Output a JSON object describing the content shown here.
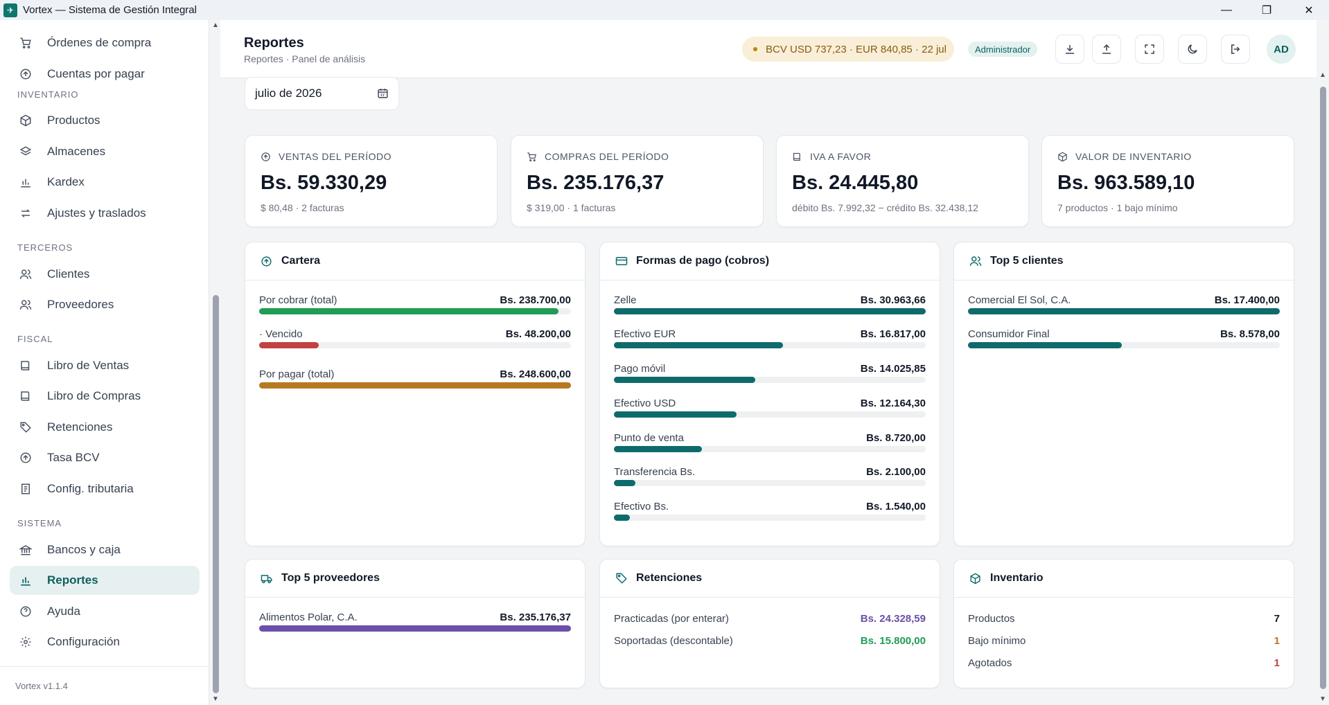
{
  "window": {
    "title": "Vortex — Sistema de Gestión Integral"
  },
  "sidebar": {
    "items_top": [
      {
        "label": "Órdenes de compra",
        "icon": "cart-icon"
      },
      {
        "label": "Cuentas por pagar",
        "icon": "circle-arrow-icon"
      }
    ],
    "sections": [
      {
        "title": "INVENTARIO",
        "items": [
          {
            "label": "Productos",
            "icon": "box-icon"
          },
          {
            "label": "Almacenes",
            "icon": "layers-icon"
          },
          {
            "label": "Kardex",
            "icon": "bar-chart-icon"
          },
          {
            "label": "Ajustes y traslados",
            "icon": "transfer-icon"
          }
        ]
      },
      {
        "title": "TERCEROS",
        "items": [
          {
            "label": "Clientes",
            "icon": "users-icon"
          },
          {
            "label": "Proveedores",
            "icon": "users-icon"
          }
        ]
      },
      {
        "title": "FISCAL",
        "items": [
          {
            "label": "Libro de Ventas",
            "icon": "book-icon"
          },
          {
            "label": "Libro de Compras",
            "icon": "book-icon"
          },
          {
            "label": "Retenciones",
            "icon": "tag-icon"
          },
          {
            "label": "Tasa BCV",
            "icon": "circle-arrow-icon"
          },
          {
            "label": "Config. tributaria",
            "icon": "document-icon"
          }
        ]
      },
      {
        "title": "SISTEMA",
        "items": [
          {
            "label": "Bancos y caja",
            "icon": "bank-icon"
          },
          {
            "label": "Reportes",
            "icon": "bar-chart-icon",
            "active": true
          },
          {
            "label": "Ayuda",
            "icon": "help-icon"
          },
          {
            "label": "Configuración",
            "icon": "gear-icon"
          }
        ]
      }
    ],
    "version": "Vortex v1.1.4"
  },
  "header": {
    "title": "Reportes",
    "subtitle": "Reportes · Panel de análisis",
    "rate": "BCV USD 737,23 · EUR 840,85 · 22 jul",
    "role": "Administrador",
    "avatar": "AD"
  },
  "period": {
    "value": "julio de 2026"
  },
  "kpis": [
    {
      "label": "VENTAS DEL PERÍODO",
      "value": "Bs. 59.330,29",
      "sub": "$ 80,48 · 2 facturas",
      "icon": "circle-arrow-icon"
    },
    {
      "label": "COMPRAS DEL PERÍODO",
      "value": "Bs. 235.176,37",
      "sub": "$ 319,00 · 1 facturas",
      "icon": "cart-icon"
    },
    {
      "label": "IVA A FAVOR",
      "value": "Bs. 24.445,80",
      "sub": "débito Bs. 7.992,32 − crédito Bs. 32.438,12",
      "icon": "book-icon"
    },
    {
      "label": "VALOR DE INVENTARIO",
      "value": "Bs. 963.589,10",
      "sub": "7 productos · 1 bajo mínimo",
      "icon": "box-icon"
    }
  ],
  "cartera": {
    "title": "Cartera",
    "rows": [
      {
        "label": "Por cobrar (total)",
        "value": "Bs. 238.700,00",
        "fraction": 0.96,
        "color": "#1f9d55"
      },
      {
        "label": "· Vencido",
        "value": "Bs. 48.200,00",
        "fraction": 0.19,
        "color": "#c24141"
      },
      {
        "label": "Por pagar (total)",
        "value": "Bs. 248.600,00",
        "fraction": 1.0,
        "color": "#b7791f"
      }
    ]
  },
  "pagos": {
    "title": "Formas de pago (cobros)",
    "rows": [
      {
        "label": "Zelle",
        "value": "Bs. 30.963,66",
        "fraction": 1.0
      },
      {
        "label": "Efectivo EUR",
        "value": "Bs. 16.817,00",
        "fraction": 0.543
      },
      {
        "label": "Pago móvil",
        "value": "Bs. 14.025,85",
        "fraction": 0.453
      },
      {
        "label": "Efectivo USD",
        "value": "Bs. 12.164,30",
        "fraction": 0.393
      },
      {
        "label": "Punto de venta",
        "value": "Bs. 8.720,00",
        "fraction": 0.282
      },
      {
        "label": "Transferencia Bs.",
        "value": "Bs. 2.100,00",
        "fraction": 0.068
      },
      {
        "label": "Efectivo Bs.",
        "value": "Bs. 1.540,00",
        "fraction": 0.05
      }
    ],
    "color": "#0f6b6b"
  },
  "clientes": {
    "title": "Top 5 clientes",
    "rows": [
      {
        "label": "Comercial El Sol, C.A.",
        "value": "Bs. 17.400,00",
        "fraction": 1.0
      },
      {
        "label": "Consumidor Final",
        "value": "Bs. 8.578,00",
        "fraction": 0.493
      }
    ],
    "color": "#0f6b6b"
  },
  "proveedores": {
    "title": "Top 5 proveedores",
    "rows": [
      {
        "label": "Alimentos Polar, C.A.",
        "value": "Bs. 235.176,37",
        "fraction": 1.0
      }
    ],
    "color": "#6b4fa8"
  },
  "retenciones": {
    "title": "Retenciones",
    "rows": [
      {
        "label": "Practicadas (por enterar)",
        "value": "Bs. 24.328,59",
        "color": "#6b4fa8"
      },
      {
        "label": "Soportadas (descontable)",
        "value": "Bs. 15.800,00",
        "color": "#1f9d55"
      }
    ]
  },
  "inventario": {
    "title": "Inventario",
    "rows": [
      {
        "label": "Productos",
        "value": "7",
        "color": "#111827"
      },
      {
        "label": "Bajo mínimo",
        "value": "1",
        "color": "#b7791f"
      },
      {
        "label": "Agotados",
        "value": "1",
        "color": "#c24141"
      }
    ]
  }
}
